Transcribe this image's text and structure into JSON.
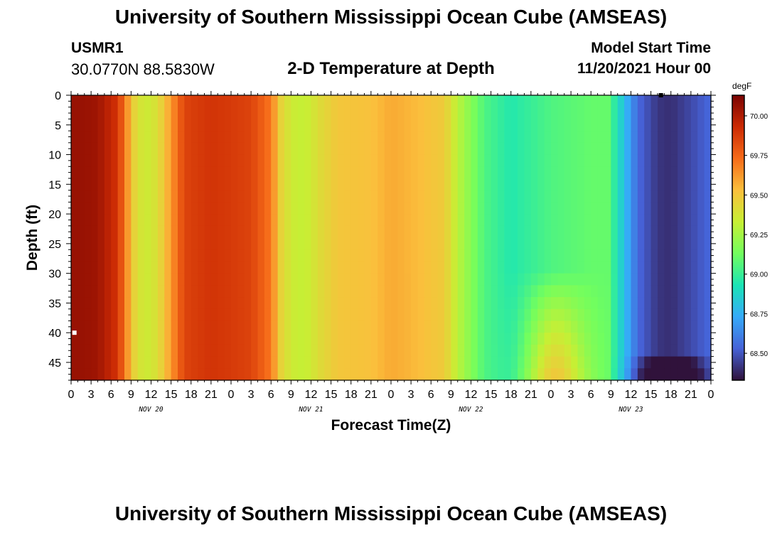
{
  "title_top": "University of Southern Mississippi Ocean Cube (AMSEAS)",
  "title_bottom": "University of Southern Mississippi Ocean Cube (AMSEAS)",
  "station": {
    "id": "USMR1",
    "coords": "30.0770N  88.5830W"
  },
  "model_start": {
    "label": "Model Start Time",
    "value": "11/20/2021 Hour 00"
  },
  "chart_data": {
    "type": "heatmap",
    "subtitle": "2-D Temperature at Depth",
    "xlabel": "Forecast Time(Z)",
    "ylabel": "Depth (ft)",
    "x_hours_range": [
      0,
      96
    ],
    "y_depth_range": [
      0,
      48
    ],
    "x_tick_labels": [
      "0",
      "3",
      "6",
      "9",
      "12",
      "15",
      "18",
      "21",
      "0",
      "3",
      "6",
      "9",
      "12",
      "15",
      "18",
      "21",
      "0",
      "3",
      "6",
      "9",
      "12",
      "15",
      "18",
      "21",
      "0",
      "3",
      "6",
      "9",
      "12",
      "15",
      "18",
      "21",
      "0"
    ],
    "day_labels": [
      {
        "label": "NOV 20",
        "hour": 12
      },
      {
        "label": "NOV 21",
        "hour": 36
      },
      {
        "label": "NOV 22",
        "hour": 60
      },
      {
        "label": "NOV 23",
        "hour": 84
      }
    ],
    "y_ticks": [
      0,
      5,
      10,
      15,
      20,
      25,
      30,
      35,
      40,
      45
    ],
    "colorbar": {
      "unit": "degF",
      "range": [
        68.33,
        70.13
      ],
      "ticks": [
        70.0,
        69.75,
        69.5,
        69.25,
        69.0,
        68.75,
        68.5
      ],
      "tick_labels": [
        "70.00",
        "69.75",
        "69.50",
        "69.25",
        "69.00",
        "68.75",
        "68.50"
      ]
    },
    "surface_profile": {
      "hours": [
        0,
        1,
        4,
        7,
        8.5,
        9.5,
        11,
        13,
        15,
        17,
        19,
        21,
        24,
        27,
        30,
        31.5,
        33,
        35,
        37.5,
        40,
        45,
        48,
        51,
        56,
        58,
        62,
        66,
        72,
        78,
        80.5,
        83,
        85,
        88,
        90,
        93,
        96
      ],
      "values": [
        70.05,
        70.06,
        70.04,
        69.9,
        69.62,
        69.45,
        69.34,
        69.4,
        69.62,
        69.85,
        69.88,
        69.9,
        69.88,
        69.85,
        69.7,
        69.45,
        69.35,
        69.32,
        69.42,
        69.5,
        69.52,
        69.58,
        69.55,
        69.48,
        69.3,
        69.05,
        68.95,
        69.05,
        69.1,
        69.1,
        68.8,
        68.55,
        68.42,
        68.4,
        68.47,
        68.55
      ]
    },
    "deep_anomalies": [
      {
        "label": "warm plume",
        "hour": 72.5,
        "depth_top": 30,
        "depth_bottom": 48,
        "delta": 0.45
      },
      {
        "label": "cool layer",
        "hour": 90,
        "depth_top": 43,
        "depth_bottom": 48,
        "delta": 0.5
      }
    ],
    "markers": [
      {
        "label": "station depth",
        "hour": 0.5,
        "depth": 40,
        "color": "#ffffff"
      },
      {
        "label": "surface point",
        "hour": 88.5,
        "depth": 0,
        "color": "#000000"
      }
    ],
    "colormap": [
      "#30123b",
      "#4662d7",
      "#36aaf9",
      "#1ae4b6",
      "#72fe5e",
      "#c7ef34",
      "#fabf3c",
      "#f66b19",
      "#cb2a04",
      "#7a0403"
    ]
  }
}
